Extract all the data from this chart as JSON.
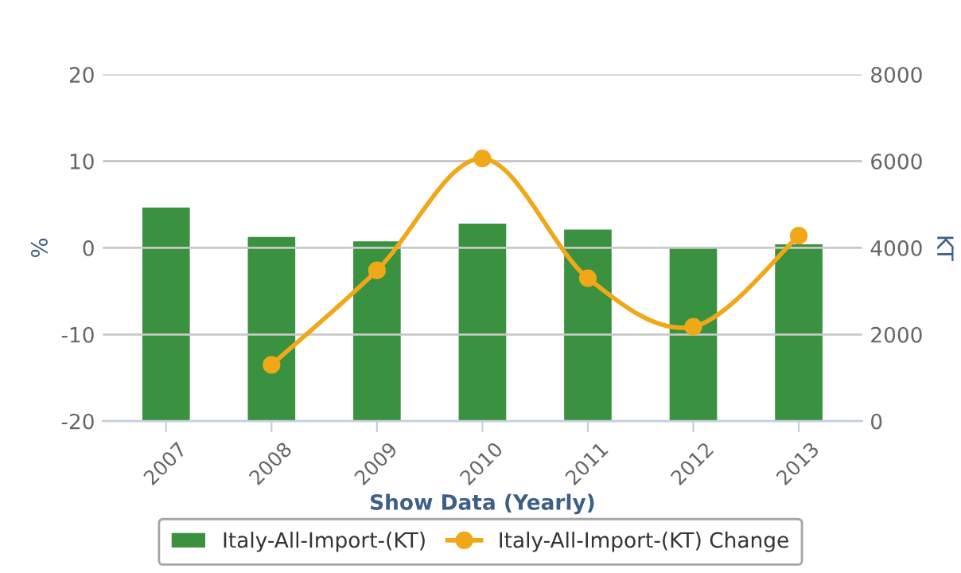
{
  "chart_data": {
    "type": "bar",
    "xlabel": "Show Data (Yearly)",
    "ylabel": "%",
    "y2label": "KT",
    "categories": [
      "2007",
      "2008",
      "2009",
      "2010",
      "2011",
      "2012",
      "2013"
    ],
    "series": [
      {
        "name": "Italy-All-Import-(KT)",
        "axis": "y2",
        "color": "#3a913f",
        "values": [
          4930,
          4250,
          4150,
          4560,
          4420,
          4010,
          4080
        ]
      },
      {
        "name": "Italy-All-Import-(KT) Change",
        "type": "line",
        "color": "#f0a818",
        "marker": "circle",
        "line_style": "solid",
        "values": [
          null,
          -13.5,
          -2.6,
          10.3,
          -3.5,
          -9.1,
          1.4
        ]
      }
    ],
    "ylim": [
      -20,
      20
    ],
    "yticks": [
      -20,
      -10,
      0,
      10,
      20
    ],
    "y2lim": [
      0,
      8000
    ],
    "y2ticks": [
      0,
      2000,
      4000,
      6000,
      8000
    ],
    "grid": "y",
    "legend": "bottom"
  }
}
